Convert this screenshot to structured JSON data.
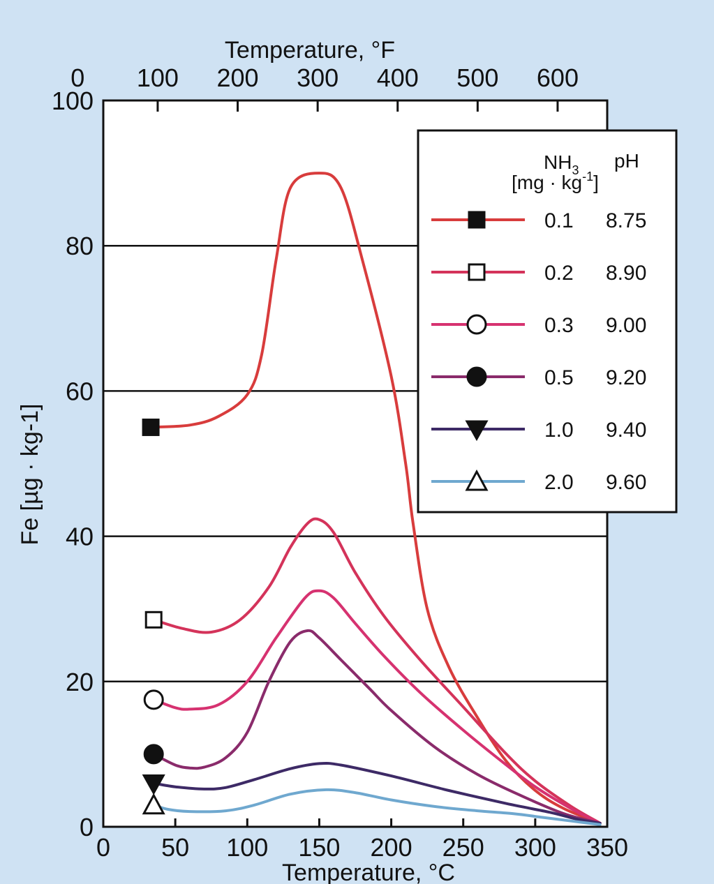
{
  "chart_data": {
    "type": "line",
    "title": "",
    "xlabel": "Temperature, °C",
    "x2label": "Temperature, °F",
    "ylabel": "Fe [µg · kg-1]",
    "xlim": [
      0,
      350
    ],
    "ylim": [
      0,
      100
    ],
    "x_ticks": [
      0,
      50,
      100,
      150,
      200,
      250,
      300,
      350
    ],
    "x2_ticks": [
      0,
      100,
      200,
      300,
      400,
      500,
      600
    ],
    "y_ticks": [
      0,
      20,
      40,
      60,
      80,
      100
    ],
    "grid": "horizontal",
    "legend": {
      "placement": "top-right",
      "header_nh3": "NH",
      "header_nh3_sub": "3",
      "header_unit": "[mg · kg",
      "header_unit_sup": "-1",
      "header_unit_close": "]",
      "header_ph": "pH"
    },
    "series": [
      {
        "name": "0.1 / 8.75",
        "nh3": "0.1",
        "ph": "8.75",
        "color": "#d83c3c",
        "marker": "square-filled",
        "points": [
          [
            33,
            55
          ],
          [
            60,
            55.3
          ],
          [
            80,
            56.5
          ],
          [
            100,
            59.5
          ],
          [
            110,
            65
          ],
          [
            120,
            78
          ],
          [
            130,
            88
          ],
          [
            150,
            90
          ],
          [
            165,
            88
          ],
          [
            180,
            78
          ],
          [
            200,
            62
          ],
          [
            210,
            50
          ],
          [
            215,
            42
          ],
          [
            225,
            30
          ],
          [
            240,
            22
          ],
          [
            260,
            15
          ],
          [
            280,
            9
          ],
          [
            300,
            5
          ],
          [
            320,
            2.5
          ],
          [
            345,
            0.5
          ]
        ]
      },
      {
        "name": "0.2 / 8.90",
        "nh3": "0.2",
        "ph": "8.90",
        "color": "#d4335a",
        "marker": "square-open",
        "points": [
          [
            35,
            28.5
          ],
          [
            55,
            27.3
          ],
          [
            75,
            26.8
          ],
          [
            95,
            28.5
          ],
          [
            115,
            33
          ],
          [
            130,
            38.5
          ],
          [
            142,
            41.8
          ],
          [
            150,
            42.3
          ],
          [
            160,
            40.5
          ],
          [
            175,
            35
          ],
          [
            195,
            29
          ],
          [
            220,
            23
          ],
          [
            250,
            16.5
          ],
          [
            280,
            10
          ],
          [
            300,
            6.3
          ],
          [
            325,
            2.8
          ],
          [
            345,
            0.5
          ]
        ]
      },
      {
        "name": "0.3 / 9.00",
        "nh3": "0.3",
        "ph": "9.00",
        "color": "#d63270",
        "marker": "circle-open",
        "points": [
          [
            35,
            17.5
          ],
          [
            50,
            16.4
          ],
          [
            60,
            16.2
          ],
          [
            80,
            16.8
          ],
          [
            100,
            20
          ],
          [
            120,
            26
          ],
          [
            140,
            31.5
          ],
          [
            150,
            32.5
          ],
          [
            160,
            31.5
          ],
          [
            175,
            28
          ],
          [
            195,
            23.5
          ],
          [
            220,
            18.5
          ],
          [
            250,
            13.3
          ],
          [
            280,
            8.5
          ],
          [
            300,
            5.5
          ],
          [
            325,
            2.5
          ],
          [
            345,
            0.5
          ]
        ]
      },
      {
        "name": "0.5 / 9.20",
        "nh3": "0.5",
        "ph": "9.20",
        "color": "#8a2b6b",
        "marker": "circle-filled",
        "points": [
          [
            35,
            10
          ],
          [
            50,
            8.5
          ],
          [
            60,
            8.1
          ],
          [
            70,
            8.2
          ],
          [
            85,
            9.5
          ],
          [
            100,
            13
          ],
          [
            115,
            20
          ],
          [
            130,
            25.5
          ],
          [
            142,
            27
          ],
          [
            150,
            26
          ],
          [
            165,
            23
          ],
          [
            185,
            19
          ],
          [
            200,
            16
          ],
          [
            230,
            11
          ],
          [
            260,
            7.2
          ],
          [
            290,
            4.3
          ],
          [
            320,
            1.8
          ],
          [
            345,
            0.5
          ]
        ]
      },
      {
        "name": "1.0 / 9.40",
        "nh3": "1.0",
        "ph": "9.40",
        "color": "#3d2a66",
        "marker": "triangle-down-filled",
        "points": [
          [
            35,
            6
          ],
          [
            50,
            5.5
          ],
          [
            70,
            5.2
          ],
          [
            85,
            5.4
          ],
          [
            105,
            6.5
          ],
          [
            130,
            8
          ],
          [
            150,
            8.7
          ],
          [
            165,
            8.5
          ],
          [
            200,
            7
          ],
          [
            240,
            5
          ],
          [
            280,
            3.2
          ],
          [
            310,
            2
          ],
          [
            330,
            1
          ],
          [
            345,
            0.5
          ]
        ]
      },
      {
        "name": "2.0 / 9.60",
        "nh3": "2.0",
        "ph": "9.60",
        "color": "#6fa8cf",
        "marker": "triangle-up-open",
        "points": [
          [
            35,
            3
          ],
          [
            45,
            2.4
          ],
          [
            60,
            2.1
          ],
          [
            85,
            2.2
          ],
          [
            105,
            3
          ],
          [
            130,
            4.5
          ],
          [
            155,
            5.1
          ],
          [
            175,
            4.7
          ],
          [
            200,
            3.7
          ],
          [
            230,
            2.8
          ],
          [
            260,
            2.2
          ],
          [
            285,
            1.8
          ],
          [
            305,
            1.3
          ],
          [
            325,
            0.8
          ],
          [
            345,
            0.3
          ]
        ]
      }
    ]
  }
}
